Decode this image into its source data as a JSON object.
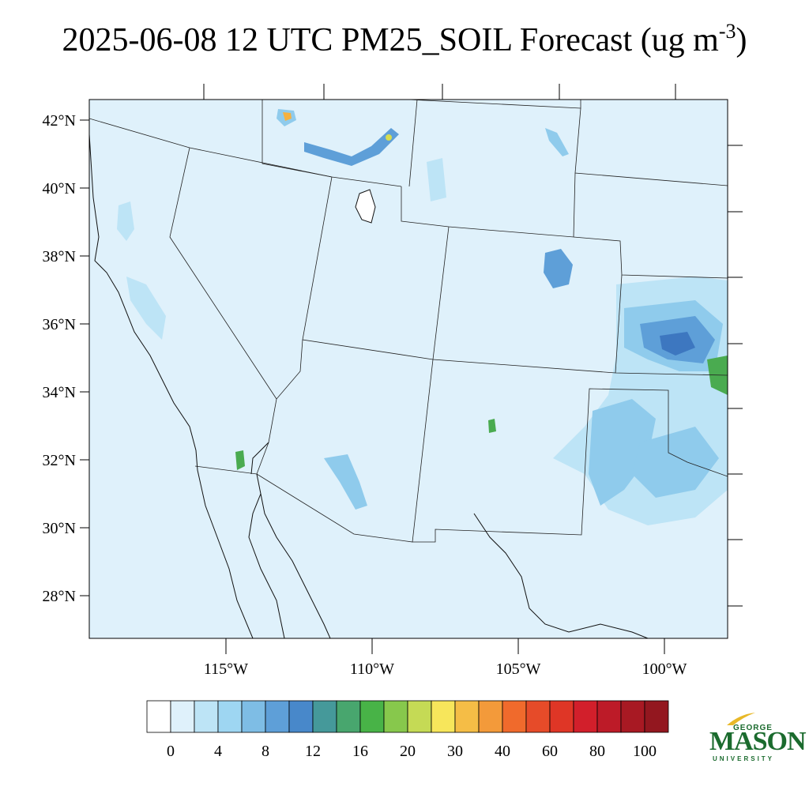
{
  "title": {
    "main": "2025-06-08 12 UTC PM25_SOIL Forecast (ug m",
    "superscript": "-3",
    "close": ")"
  },
  "map": {
    "lat_labels": [
      "42°N",
      "40°N",
      "38°N",
      "36°N",
      "34°N",
      "32°N",
      "30°N",
      "28°N"
    ],
    "lon_labels": [
      "115°W",
      "110°W",
      "105°W",
      "100°W"
    ],
    "background_color": "#dff1fb",
    "hotspot_colors": [
      "#bde4f6",
      "#8fcbec",
      "#5e9fd8",
      "#3d77c0",
      "#4aab50",
      "#d6dd50",
      "#f5b13f"
    ]
  },
  "colorbar": {
    "colors": [
      "#ffffff",
      "#dff1fb",
      "#bde4f6",
      "#9ed6f2",
      "#7ebde5",
      "#5e9fd8",
      "#4888ca",
      "#45999a",
      "#48a66e",
      "#48b347",
      "#87c84c",
      "#c5da55",
      "#f7e65b",
      "#f5bd46",
      "#f39a3a",
      "#f06a2c",
      "#e64b29",
      "#df3626",
      "#d21f2b",
      "#bd1b28",
      "#a81923",
      "#93171f"
    ],
    "labels": [
      "0",
      "4",
      "8",
      "12",
      "16",
      "20",
      "30",
      "40",
      "60",
      "80",
      "100"
    ]
  },
  "logo": {
    "line1": "GEORGE",
    "line2": "MASON",
    "line3": "UNIVERSITY",
    "color": "#1b6b2e",
    "accent": "#e8b828"
  }
}
